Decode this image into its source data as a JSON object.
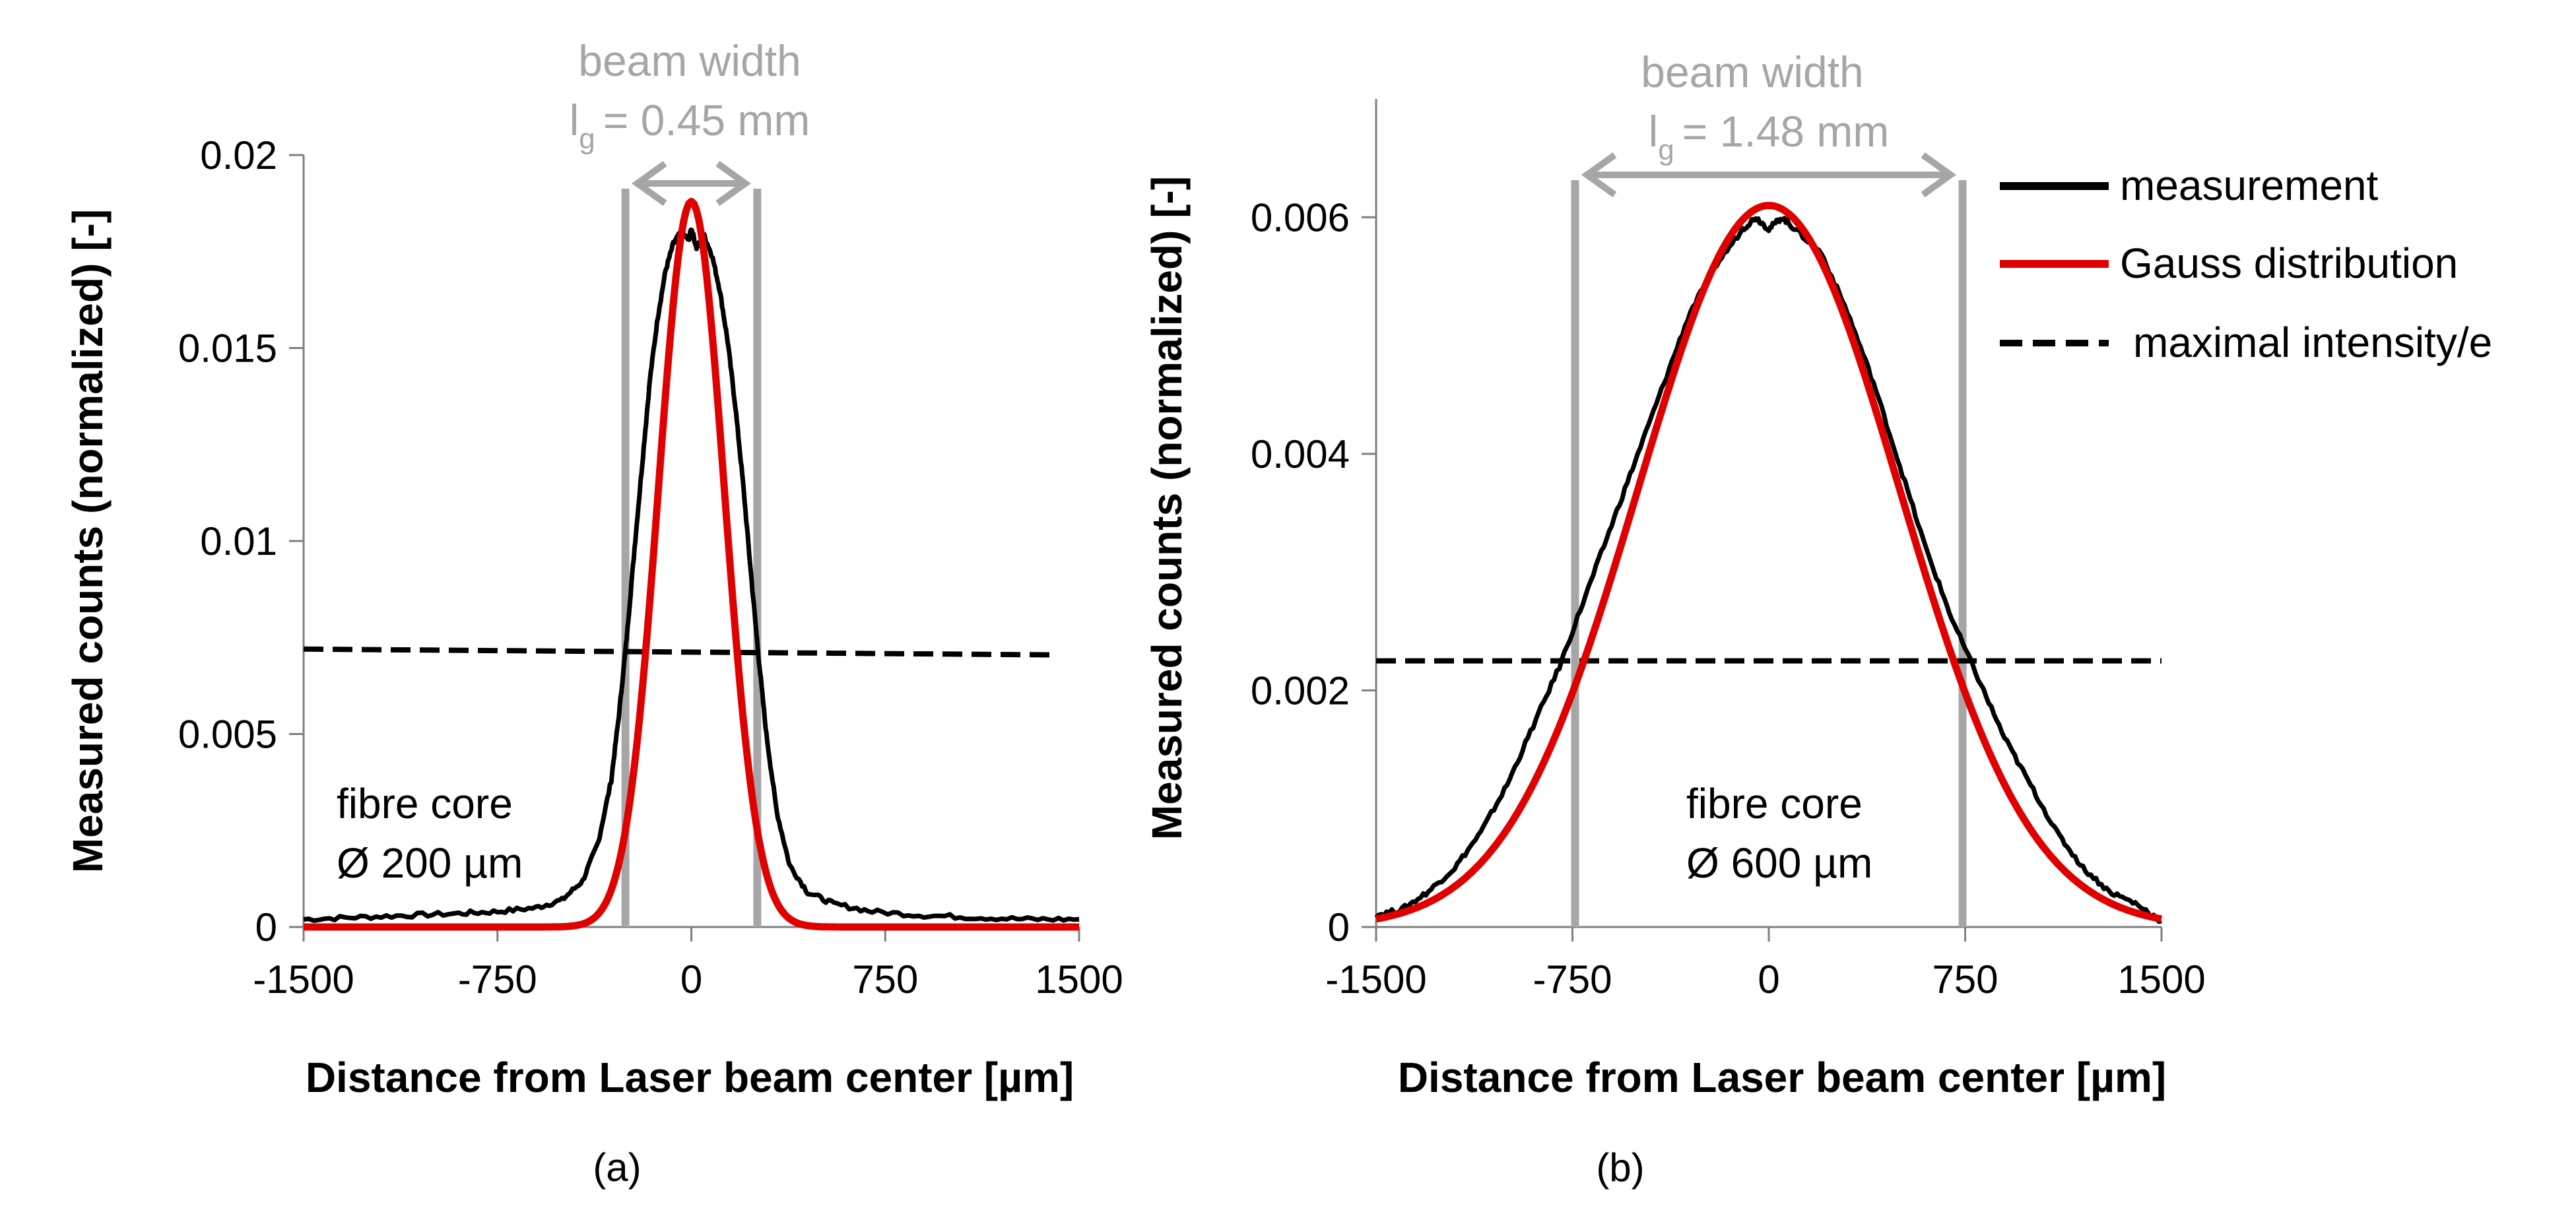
{
  "colors": {
    "measurement": "#000000",
    "gauss": "#e00000",
    "threshold": "#000000",
    "beam_marker": "#a6a6a6",
    "axis": "#000000"
  },
  "legend": {
    "measurement": "measurement",
    "gauss": "Gauss distribution",
    "threshold": "maximal intensity/e"
  },
  "chart_data": [
    {
      "type": "line",
      "panel_label": "(a)",
      "xlabel": "Distance from Laser beam center [µm]",
      "ylabel": "Measured counts (normalized)  [-]",
      "xlim": [
        -1500,
        1500
      ],
      "ylim": [
        0,
        0.02
      ],
      "x_ticks": [
        "-1500",
        "-750",
        "0",
        "750",
        "1500"
      ],
      "y_ticks": [
        "0",
        "0.005",
        "0.01",
        "0.015",
        "0.02"
      ],
      "beam_width_label": "beam width",
      "beam_width_value": "= 0.45 mm",
      "beam_width_symbol": "l",
      "beam_width_subscript": "g",
      "beam_edges": [
        -255,
        255
      ],
      "annotation_line1": "fibre core",
      "annotation_line2": "Ø 200 µm",
      "threshold_line": {
        "x": [
          -1500,
          1400
        ],
        "y": [
          0.0072,
          0.00705
        ]
      },
      "series": [
        {
          "name": "measurement",
          "x": [
            -1500,
            -1300,
            -1100,
            -900,
            -750,
            -600,
            -500,
            -420,
            -360,
            -310,
            -280,
            -250,
            -220,
            -190,
            -160,
            -130,
            -100,
            -70,
            -40,
            -10,
            0,
            20,
            50,
            80,
            110,
            140,
            170,
            200,
            230,
            260,
            290,
            330,
            380,
            450,
            550,
            700,
            900,
            1100,
            1300,
            1500
          ],
          "y": [
            0.0002,
            0.00025,
            0.0003,
            0.00035,
            0.0004,
            0.0005,
            0.0007,
            0.0012,
            0.0022,
            0.0038,
            0.0055,
            0.0075,
            0.0098,
            0.012,
            0.0142,
            0.0158,
            0.017,
            0.0177,
            0.018,
            0.0178,
            0.0181,
            0.0176,
            0.0179,
            0.0174,
            0.0165,
            0.0152,
            0.0135,
            0.0115,
            0.0092,
            0.007,
            0.005,
            0.003,
            0.0016,
            0.0009,
            0.0006,
            0.0004,
            0.0003,
            0.00025,
            0.0002,
            0.0002
          ]
        },
        {
          "name": "Gauss distribution",
          "mu": 0,
          "amplitude": 0.0188,
          "sigma": 127
        }
      ]
    },
    {
      "type": "line",
      "panel_label": "(b)",
      "xlabel": "Distance from Laser beam center [µm]",
      "ylabel": "Measured counts (normalized) [-]",
      "xlim": [
        -1500,
        1500
      ],
      "ylim": [
        0,
        0.007
      ],
      "x_ticks": [
        "-1500",
        "-750",
        "0",
        "750",
        "1500"
      ],
      "y_ticks": [
        "0",
        "0.002",
        "0.004",
        "0.006"
      ],
      "beam_width_label": "beam width",
      "beam_width_value": "= 1.48 mm",
      "beam_width_symbol": "l",
      "beam_width_subscript": "g",
      "beam_edges": [
        -740,
        740
      ],
      "annotation_line1": "fibre core",
      "annotation_line2": "Ø 600 µm",
      "threshold_line": {
        "x": [
          -1500,
          1500
        ],
        "y": [
          0.00225,
          0.00225
        ]
      },
      "series": [
        {
          "name": "measurement",
          "x": [
            -1500,
            -1400,
            -1300,
            -1200,
            -1100,
            -1000,
            -900,
            -800,
            -700,
            -600,
            -500,
            -400,
            -300,
            -200,
            -100,
            -50,
            0,
            50,
            100,
            200,
            300,
            400,
            500,
            600,
            700,
            800,
            900,
            1000,
            1100,
            1200,
            1300,
            1400,
            1500
          ],
          "y": [
            0.0001,
            0.00015,
            0.0003,
            0.0005,
            0.0008,
            0.0012,
            0.0017,
            0.0022,
            0.0028,
            0.0034,
            0.004,
            0.0046,
            0.0052,
            0.0056,
            0.0059,
            0.006,
            0.0059,
            0.006,
            0.0059,
            0.0057,
            0.0052,
            0.0046,
            0.0039,
            0.0032,
            0.0026,
            0.0021,
            0.0016,
            0.0012,
            0.0008,
            0.0005,
            0.0003,
            0.0002,
            5e-05
          ]
        },
        {
          "name": "Gauss distribution",
          "mu": 0,
          "amplitude": 0.0061,
          "sigma": 500
        }
      ]
    }
  ]
}
